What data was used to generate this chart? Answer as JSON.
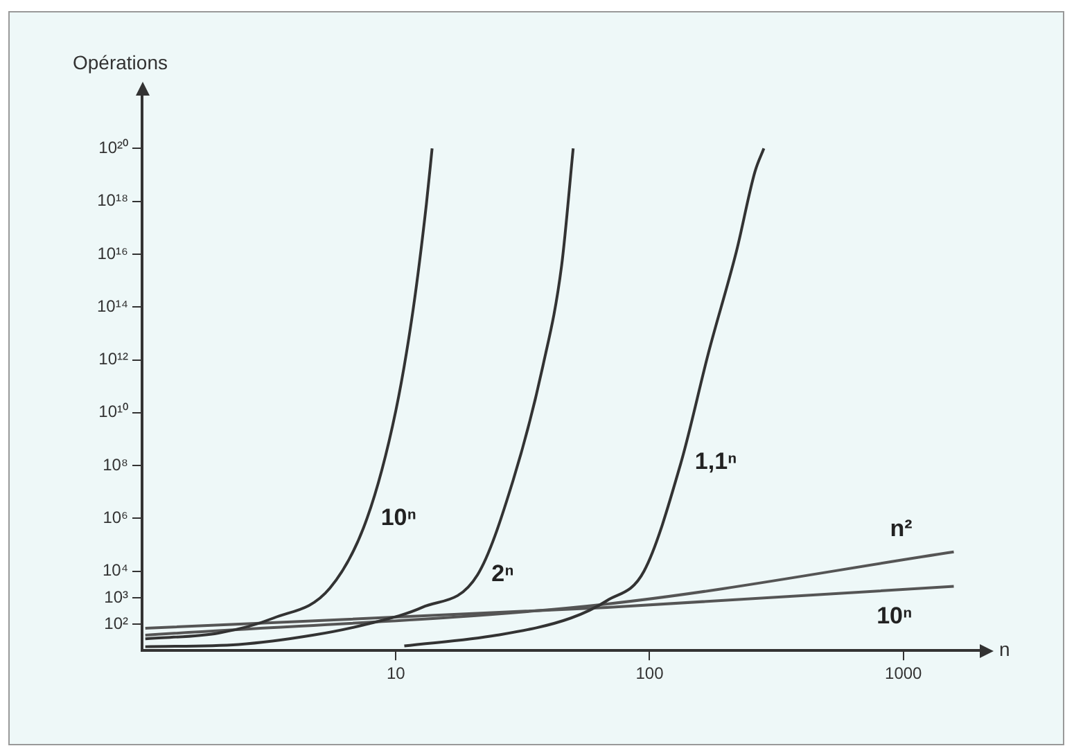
{
  "chart_data": {
    "type": "line",
    "ylabel": "Opérations",
    "xlabel": "n",
    "log": "xy",
    "grid": false,
    "legend": false,
    "marker": "none",
    "line_style": "solid",
    "xlim": [
      1,
      2000
    ],
    "xticks": [
      10,
      100,
      1000
    ],
    "ylim": [
      10,
      1e+22
    ],
    "yticks": [
      {
        "value": 100,
        "label": "10²"
      },
      {
        "value": 1000,
        "label": "10³"
      },
      {
        "value": 10000,
        "label": "10⁴"
      },
      {
        "value": 1000000.0,
        "label": "10⁶"
      },
      {
        "value": 100000000.0,
        "label": "10⁸"
      },
      {
        "value": 10000000000.0,
        "label": "10¹⁰"
      },
      {
        "value": 1000000000000.0,
        "label": "10¹²"
      },
      {
        "value": 100000000000000.0,
        "label": "10¹⁴"
      },
      {
        "value": 1e+16,
        "label": "10¹⁶"
      },
      {
        "value": 1e+18,
        "label": "10¹⁸"
      },
      {
        "value": 1e+20,
        "label": "10²⁰"
      }
    ],
    "series": [
      {
        "name": "10ⁿ",
        "color": "#333333",
        "x": [
          1.03,
          2,
          3.3,
          5.5,
          7.7,
          10,
          11.7,
          13.2,
          13.9
        ],
        "values": [
          28,
          46,
          170,
          2300,
          1000000.0,
          12000000000.0,
          80000000000000.0,
          8e+17,
          1e+20
        ]
      },
      {
        "name": "2ⁿ",
        "color": "#333333",
        "x": [
          1.03,
          2.4,
          4.7,
          7.7,
          12.7,
          21,
          29,
          38,
          45,
          50
        ],
        "values": [
          14,
          17,
          38,
          100,
          430,
          7400,
          28000000.0,
          600000000000.0,
          3600000000000000.0,
          1e+20
        ]
      },
      {
        "name": "1,1ⁿ",
        "color": "#333333",
        "x": [
          10.8,
          25,
          49,
          68,
          95,
          133,
          171,
          220,
          260,
          282
        ],
        "values": [
          15,
          38,
          170,
          780,
          10000,
          130000000.0,
          2000000000000.0,
          1.3e+16,
          1.3e+19,
          1e+20
        ]
      },
      {
        "name": "n²",
        "color": "#555555",
        "x": [
          1.03,
          68,
          1580
        ],
        "values": [
          38,
          580,
          54000
        ]
      },
      {
        "name": "10ⁿ",
        "color": "#555555",
        "x": [
          1.03,
          68,
          1580
        ],
        "values": [
          70,
          430,
          2700
        ]
      }
    ]
  }
}
